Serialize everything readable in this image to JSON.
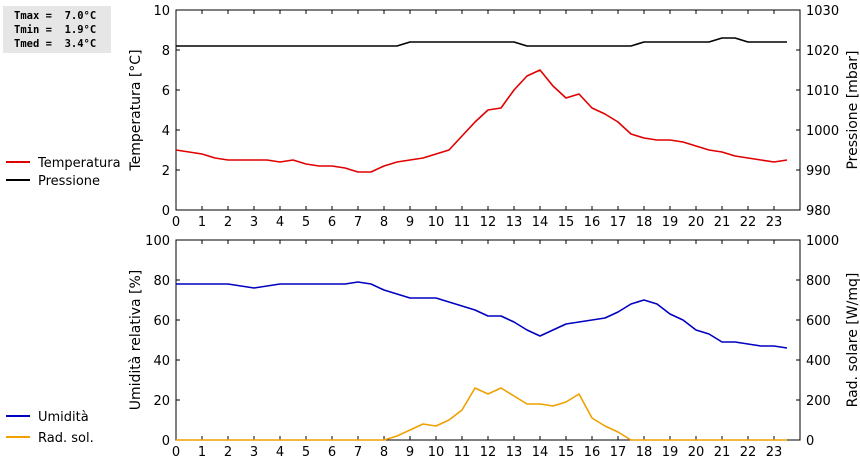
{
  "stats": {
    "tmax": "Tmax =  7.0°C",
    "tmin": "Tmin =  1.9°C",
    "tmed": "Tmed =  3.4°C"
  },
  "chart_data": [
    {
      "type": "line",
      "x_ticks": [
        "0",
        "1",
        "2",
        "3",
        "4",
        "5",
        "6",
        "7",
        "8",
        "9",
        "10",
        "11",
        "12",
        "13",
        "14",
        "15",
        "16",
        "17",
        "18",
        "19",
        "20",
        "21",
        "22",
        "23"
      ],
      "xlim": [
        0,
        24
      ],
      "ylabel_left": "Temperatura [°C]",
      "ylim_left": [
        0,
        10
      ],
      "yticks_left": [
        0,
        2,
        4,
        6,
        8,
        10
      ],
      "ylabel_right": "Pressione [mbar]",
      "ylim_right": [
        980,
        1030
      ],
      "yticks_right": [
        980,
        990,
        1000,
        1010,
        1020,
        1030
      ],
      "grid": false,
      "legend_position": "left",
      "series": [
        {
          "name": "Temperatura",
          "axis": "left",
          "color": "#e00000",
          "x": [
            0,
            0.5,
            1,
            1.5,
            2,
            2.5,
            3,
            3.5,
            4,
            4.5,
            5,
            5.5,
            6,
            6.5,
            7,
            7.5,
            8,
            8.5,
            9,
            9.5,
            10,
            10.5,
            11,
            11.5,
            12,
            12.5,
            13,
            13.5,
            14,
            14.5,
            15,
            15.5,
            16,
            16.5,
            17,
            17.5,
            18,
            18.5,
            19,
            19.5,
            20,
            20.5,
            21,
            21.5,
            22,
            22.5,
            23,
            23.5
          ],
          "values": [
            3.0,
            2.9,
            2.8,
            2.6,
            2.5,
            2.5,
            2.5,
            2.5,
            2.4,
            2.5,
            2.3,
            2.2,
            2.2,
            2.1,
            1.9,
            1.9,
            2.2,
            2.4,
            2.5,
            2.6,
            2.8,
            3.0,
            3.7,
            4.4,
            5.0,
            5.1,
            6.0,
            6.7,
            7.0,
            6.2,
            5.6,
            5.8,
            5.1,
            4.8,
            4.4,
            3.8,
            3.6,
            3.5,
            3.5,
            3.4,
            3.2,
            3.0,
            2.9,
            2.7,
            2.6,
            2.5,
            2.4,
            2.5
          ]
        },
        {
          "name": "Pressione",
          "axis": "right",
          "color": "#000000",
          "x": [
            0,
            0.5,
            1,
            1.5,
            2,
            2.5,
            3,
            3.5,
            4,
            4.5,
            5,
            5.5,
            6,
            6.5,
            7,
            7.5,
            8,
            8.5,
            9,
            9.5,
            10,
            10.5,
            11,
            11.5,
            12,
            12.5,
            13,
            13.5,
            14,
            14.5,
            15,
            15.5,
            16,
            16.5,
            17,
            17.5,
            18,
            18.5,
            19,
            19.5,
            20,
            20.5,
            21,
            21.5,
            22,
            22.5,
            23,
            23.5
          ],
          "values": [
            1021,
            1021,
            1021,
            1021,
            1021,
            1021,
            1021,
            1021,
            1021,
            1021,
            1021,
            1021,
            1021,
            1021,
            1021,
            1021,
            1021,
            1021,
            1022,
            1022,
            1022,
            1022,
            1022,
            1022,
            1022,
            1022,
            1022,
            1021,
            1021,
            1021,
            1021,
            1021,
            1021,
            1021,
            1021,
            1021,
            1022,
            1022,
            1022,
            1022,
            1022,
            1022,
            1023,
            1023,
            1022,
            1022,
            1022,
            1022
          ]
        }
      ]
    },
    {
      "type": "line",
      "x_ticks": [
        "0",
        "1",
        "2",
        "3",
        "4",
        "5",
        "6",
        "7",
        "8",
        "9",
        "10",
        "11",
        "12",
        "13",
        "14",
        "15",
        "16",
        "17",
        "18",
        "19",
        "20",
        "21",
        "22",
        "23"
      ],
      "xlim": [
        0,
        24
      ],
      "ylabel_left": "Umidità relativa [%]",
      "ylim_left": [
        0,
        100
      ],
      "yticks_left": [
        0,
        20,
        40,
        60,
        80,
        100
      ],
      "ylabel_right": "Rad. solare [W/mq]",
      "ylim_right": [
        0,
        1000
      ],
      "yticks_right": [
        0,
        200,
        400,
        600,
        800,
        1000
      ],
      "grid": false,
      "legend_position": "left",
      "series": [
        {
          "name": "Umidità",
          "axis": "left",
          "color": "#0000c0",
          "x": [
            0,
            0.5,
            1,
            1.5,
            2,
            2.5,
            3,
            3.5,
            4,
            4.5,
            5,
            5.5,
            6,
            6.5,
            7,
            7.5,
            8,
            8.5,
            9,
            9.5,
            10,
            10.5,
            11,
            11.5,
            12,
            12.5,
            13,
            13.5,
            14,
            14.5,
            15,
            15.5,
            16,
            16.5,
            17,
            17.5,
            18,
            18.5,
            19,
            19.5,
            20,
            20.5,
            21,
            21.5,
            22,
            22.5,
            23,
            23.5
          ],
          "values": [
            78,
            78,
            78,
            78,
            78,
            77,
            76,
            77,
            78,
            78,
            78,
            78,
            78,
            78,
            79,
            78,
            75,
            73,
            71,
            71,
            71,
            69,
            67,
            65,
            62,
            62,
            59,
            55,
            52,
            55,
            58,
            59,
            60,
            61,
            64,
            68,
            70,
            68,
            63,
            60,
            55,
            53,
            49,
            49,
            48,
            47,
            47,
            46
          ]
        },
        {
          "name": "Rad. sol.",
          "axis": "right",
          "color": "#f0a000",
          "x": [
            0,
            0.5,
            1,
            1.5,
            2,
            2.5,
            3,
            3.5,
            4,
            4.5,
            5,
            5.5,
            6,
            6.5,
            7,
            7.5,
            8,
            8.5,
            9,
            9.5,
            10,
            10.5,
            11,
            11.5,
            12,
            12.5,
            13,
            13.5,
            14,
            14.5,
            15,
            15.5,
            16,
            16.5,
            17,
            17.5,
            18,
            18.5,
            19,
            19.5,
            20,
            20.5,
            21,
            21.5,
            22,
            22.5,
            23,
            23.5
          ],
          "values": [
            0,
            0,
            0,
            0,
            0,
            0,
            0,
            0,
            0,
            0,
            0,
            0,
            0,
            0,
            0,
            0,
            0,
            20,
            50,
            80,
            70,
            100,
            150,
            260,
            230,
            260,
            220,
            180,
            180,
            170,
            190,
            230,
            110,
            70,
            40,
            0,
            0,
            0,
            0,
            0,
            0,
            0,
            0,
            0,
            0,
            0,
            0,
            0
          ]
        }
      ]
    }
  ]
}
